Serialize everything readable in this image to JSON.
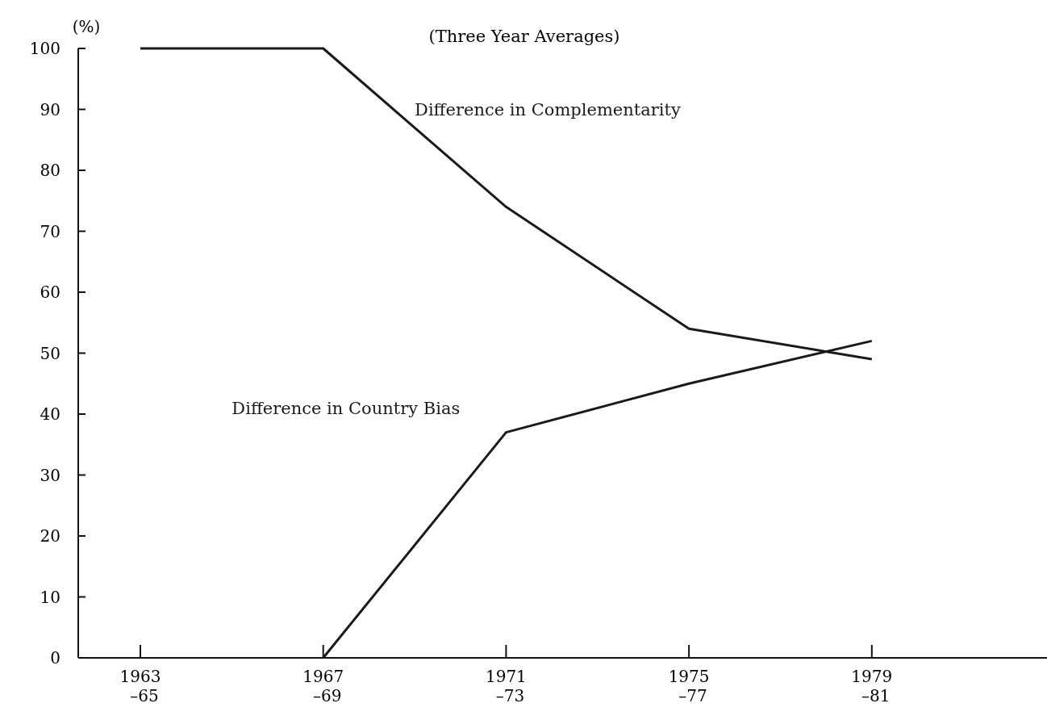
{
  "chart_data": {
    "type": "line",
    "subtitle": "(Three Year Averages)",
    "ylabel": "(%)",
    "categories": [
      "1963\n–65",
      "1967\n–69",
      "1971\n–73",
      "1975\n–77",
      "1979\n–81"
    ],
    "series": [
      {
        "name": "Difference in Complementarity",
        "color": "#1a1a1a",
        "values": [
          100,
          100,
          74,
          54,
          49
        ]
      },
      {
        "name": "Difference in Country Bias",
        "color": "#1a1a1a",
        "values": [
          null,
          0,
          37,
          45,
          52
        ]
      }
    ],
    "ylim": [
      0,
      100
    ],
    "yticks": [
      0,
      10,
      20,
      30,
      40,
      50,
      60,
      70,
      80,
      90,
      100
    ],
    "grid": false,
    "marker": "none",
    "line_style": "solid"
  }
}
